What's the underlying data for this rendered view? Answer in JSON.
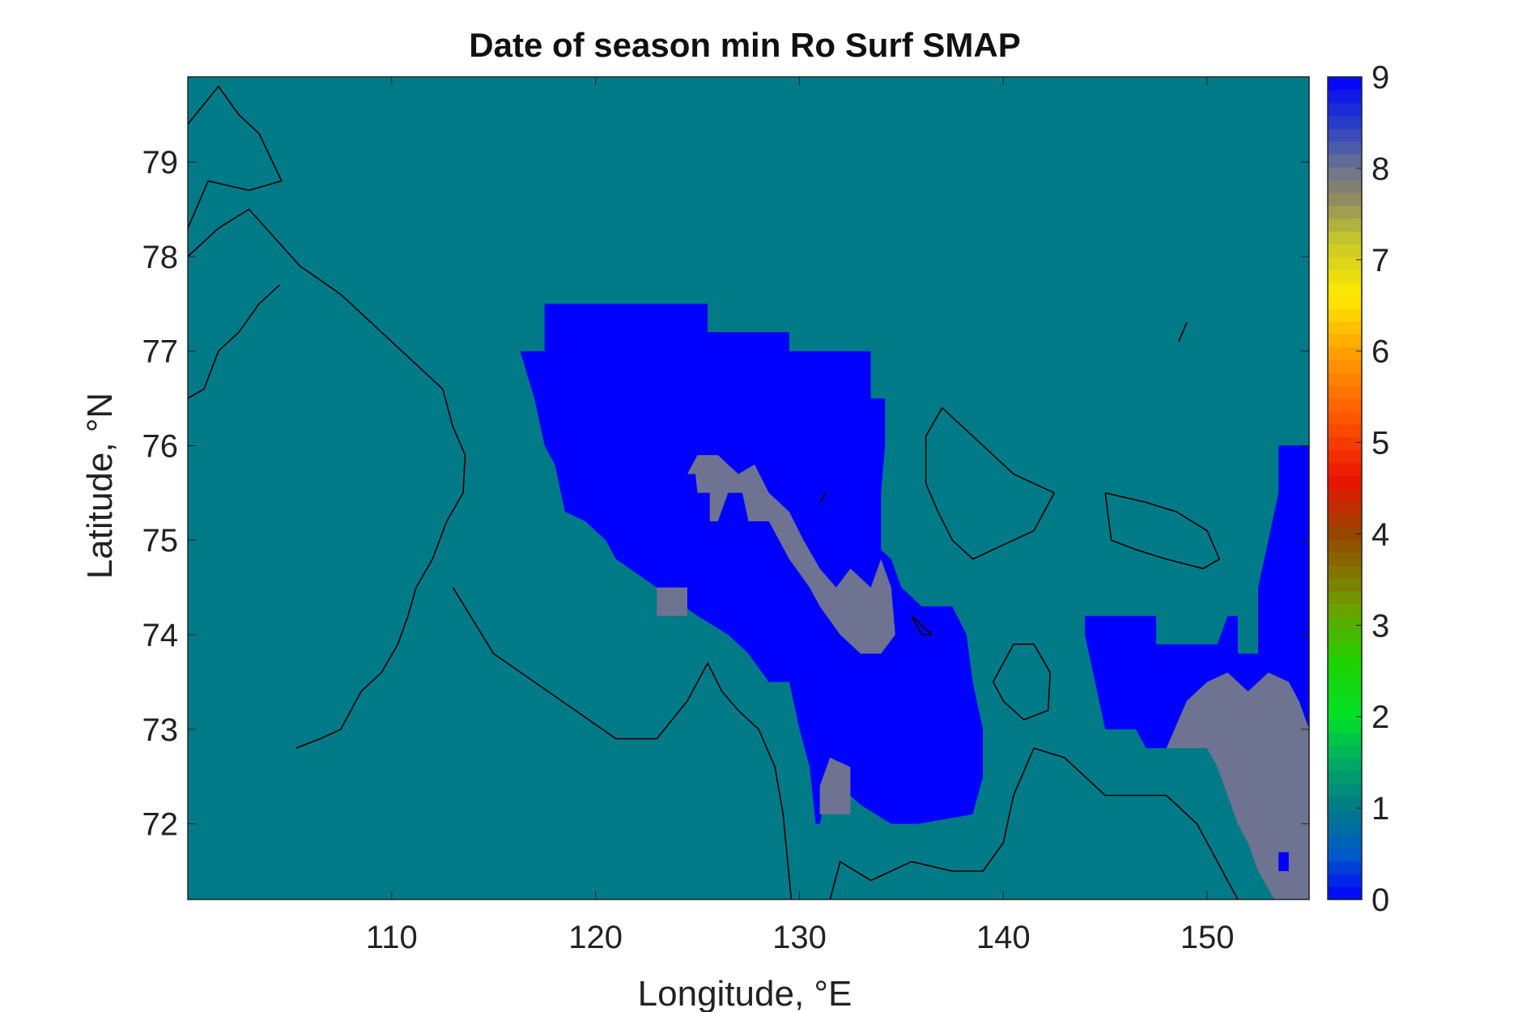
{
  "chart_data": {
    "type": "heatmap",
    "title": "Date of season min Ro Surf SMAP",
    "xlabel": "Longitude, °E",
    "ylabel": "Latitude, °N",
    "xlim": [
      100,
      155
    ],
    "ylim": [
      71.2,
      79.9
    ],
    "xticks": [
      110,
      120,
      130,
      140,
      150
    ],
    "yticks": [
      72,
      73,
      74,
      75,
      76,
      77,
      78,
      79
    ],
    "grid": false,
    "background_value": 1,
    "colorbar": {
      "position": "right",
      "range": [
        0,
        9
      ],
      "ticks": [
        0,
        1,
        2,
        3,
        4,
        5,
        6,
        7,
        8,
        9
      ],
      "colormap": "blue-teal-green-yellow-orange-red-brown-gray-blue"
    },
    "colors": {
      "value_0": "#0000ff",
      "value_1": "#007a87",
      "value_8": "#6e7391",
      "value_9": "#0000ff",
      "coastline": "#000000"
    },
    "regions": [
      {
        "value": 9,
        "description": "large blue patch central Laptev Sea",
        "polygon": [
          [
            116.3,
            77.0
          ],
          [
            117.5,
            77.0
          ],
          [
            117.5,
            77.5
          ],
          [
            125.5,
            77.5
          ],
          [
            125.5,
            77.2
          ],
          [
            129.5,
            77.2
          ],
          [
            129.5,
            77.0
          ],
          [
            133.5,
            77.0
          ],
          [
            133.5,
            76.5
          ],
          [
            134.2,
            76.5
          ],
          [
            134.2,
            76.0
          ],
          [
            134.0,
            75.5
          ],
          [
            134.0,
            74.9
          ],
          [
            134.5,
            74.8
          ],
          [
            135.0,
            74.5
          ],
          [
            136.0,
            74.3
          ],
          [
            137.5,
            74.3
          ],
          [
            138.2,
            74.0
          ],
          [
            138.5,
            73.5
          ],
          [
            139.0,
            73.0
          ],
          [
            139.0,
            72.5
          ],
          [
            138.5,
            72.1
          ],
          [
            135.8,
            72.0
          ],
          [
            134.5,
            72.0
          ],
          [
            133.0,
            72.2
          ],
          [
            131.5,
            72.5
          ],
          [
            131.0,
            72.0
          ],
          [
            130.8,
            72.0
          ],
          [
            130.5,
            72.6
          ],
          [
            130.0,
            73.0
          ],
          [
            129.5,
            73.5
          ],
          [
            128.5,
            73.5
          ],
          [
            127.5,
            73.8
          ],
          [
            126.5,
            74.0
          ],
          [
            125.0,
            74.2
          ],
          [
            123.0,
            74.5
          ],
          [
            121.0,
            74.8
          ],
          [
            120.5,
            75.0
          ],
          [
            119.5,
            75.2
          ],
          [
            118.5,
            75.3
          ],
          [
            118.0,
            75.8
          ],
          [
            117.5,
            76.0
          ],
          [
            117.0,
            76.5
          ],
          [
            116.3,
            77.0
          ]
        ]
      },
      {
        "value": 8,
        "description": "gray streak inside central blue patch",
        "polygon": [
          [
            124.5,
            75.7
          ],
          [
            124.9,
            75.7
          ],
          [
            125.0,
            75.5
          ],
          [
            125.6,
            75.5
          ],
          [
            125.6,
            75.2
          ],
          [
            126.0,
            75.2
          ],
          [
            126.5,
            75.5
          ],
          [
            127.2,
            75.5
          ],
          [
            127.5,
            75.2
          ],
          [
            128.5,
            75.2
          ],
          [
            129.5,
            74.8
          ],
          [
            130.5,
            74.5
          ],
          [
            131.0,
            74.3
          ],
          [
            132.0,
            74.0
          ],
          [
            133.0,
            73.8
          ],
          [
            134.0,
            73.8
          ],
          [
            134.7,
            74.0
          ],
          [
            134.5,
            74.5
          ],
          [
            134.0,
            74.8
          ],
          [
            133.5,
            74.5
          ],
          [
            132.5,
            74.7
          ],
          [
            131.8,
            74.5
          ],
          [
            131.0,
            74.7
          ],
          [
            130.2,
            75.0
          ],
          [
            129.5,
            75.3
          ],
          [
            128.5,
            75.5
          ],
          [
            127.8,
            75.8
          ],
          [
            127.0,
            75.7
          ],
          [
            126.0,
            75.9
          ],
          [
            125.0,
            75.9
          ],
          [
            124.5,
            75.7
          ]
        ]
      },
      {
        "value": 8,
        "description": "gray cells southern edge central patch",
        "polygon": [
          [
            131.0,
            72.1
          ],
          [
            132.5,
            72.1
          ],
          [
            132.5,
            72.6
          ],
          [
            131.5,
            72.7
          ],
          [
            131.0,
            72.4
          ],
          [
            131.0,
            72.1
          ]
        ]
      },
      {
        "value": 8,
        "description": "gray block west of central patch",
        "polygon": [
          [
            123.0,
            74.2
          ],
          [
            124.5,
            74.2
          ],
          [
            124.5,
            74.5
          ],
          [
            123.0,
            74.5
          ],
          [
            123.0,
            74.2
          ]
        ]
      },
      {
        "value": 9,
        "description": "blue patch east of New Siberian Islands",
        "polygon": [
          [
            144.0,
            74.2
          ],
          [
            147.5,
            74.2
          ],
          [
            147.5,
            73.9
          ],
          [
            150.5,
            73.9
          ],
          [
            151.0,
            74.2
          ],
          [
            151.5,
            74.2
          ],
          [
            151.5,
            73.8
          ],
          [
            152.5,
            73.8
          ],
          [
            152.5,
            74.5
          ],
          [
            153.0,
            75.0
          ],
          [
            153.5,
            75.5
          ],
          [
            153.5,
            76.0
          ],
          [
            155.0,
            76.0
          ],
          [
            155.0,
            73.0
          ],
          [
            154.5,
            73.3
          ],
          [
            154.0,
            73.5
          ],
          [
            153.0,
            73.6
          ],
          [
            152.0,
            73.4
          ],
          [
            151.0,
            73.6
          ],
          [
            150.0,
            73.5
          ],
          [
            149.0,
            73.3
          ],
          [
            148.0,
            72.8
          ],
          [
            147.0,
            72.8
          ],
          [
            146.5,
            73.0
          ],
          [
            145.0,
            73.0
          ],
          [
            144.5,
            73.5
          ],
          [
            144.0,
            74.0
          ],
          [
            144.0,
            74.2
          ]
        ]
      },
      {
        "value": 8,
        "description": "gray patch East Siberian Sea coast",
        "polygon": [
          [
            147.0,
            72.8
          ],
          [
            148.0,
            72.8
          ],
          [
            149.0,
            73.3
          ],
          [
            150.0,
            73.5
          ],
          [
            151.0,
            73.6
          ],
          [
            152.0,
            73.4
          ],
          [
            153.0,
            73.6
          ],
          [
            154.0,
            73.5
          ],
          [
            154.5,
            73.3
          ],
          [
            155.0,
            73.0
          ],
          [
            155.0,
            71.2
          ],
          [
            153.3,
            71.2
          ],
          [
            152.5,
            71.5
          ],
          [
            152.0,
            71.8
          ],
          [
            151.5,
            72.0
          ],
          [
            151.0,
            72.3
          ],
          [
            150.5,
            72.6
          ],
          [
            150.0,
            72.8
          ],
          [
            149.0,
            72.8
          ],
          [
            148.5,
            72.8
          ],
          [
            147.5,
            72.8
          ],
          [
            147.0,
            72.8
          ]
        ]
      },
      {
        "value": 9,
        "description": "small blue cell south gray patch",
        "polygon": [
          [
            153.5,
            71.5
          ],
          [
            154.0,
            71.5
          ],
          [
            154.0,
            71.7
          ],
          [
            153.5,
            71.7
          ],
          [
            153.5,
            71.5
          ]
        ]
      }
    ],
    "coastlines": [
      {
        "name": "Taymyr Peninsula",
        "points": [
          [
            100.0,
            78.0
          ],
          [
            101.5,
            78.3
          ],
          [
            103.0,
            78.5
          ],
          [
            105.5,
            77.9
          ],
          [
            107.5,
            77.6
          ],
          [
            109.5,
            77.2
          ],
          [
            110.5,
            77.0
          ],
          [
            112.5,
            76.6
          ],
          [
            113.0,
            76.2
          ],
          [
            113.6,
            75.9
          ],
          [
            113.5,
            75.5
          ],
          [
            112.7,
            75.2
          ],
          [
            112.0,
            74.8
          ],
          [
            111.2,
            74.5
          ],
          [
            110.8,
            74.2
          ],
          [
            110.3,
            73.9
          ],
          [
            109.5,
            73.6
          ],
          [
            108.5,
            73.4
          ],
          [
            107.5,
            73.0
          ],
          [
            106.5,
            72.9
          ],
          [
            105.3,
            72.8
          ]
        ]
      },
      {
        "name": "Taymyr west coast",
        "points": [
          [
            100.0,
            76.5
          ],
          [
            100.8,
            76.6
          ],
          [
            101.5,
            77.0
          ],
          [
            102.5,
            77.2
          ],
          [
            103.5,
            77.5
          ],
          [
            104.5,
            77.7
          ]
        ]
      },
      {
        "name": "Severnaya Zemlya",
        "points": [
          [
            100.0,
            79.4
          ],
          [
            101.5,
            79.8
          ],
          [
            102.5,
            79.5
          ],
          [
            103.5,
            79.3
          ],
          [
            104.6,
            78.8
          ],
          [
            103.0,
            78.7
          ],
          [
            101.0,
            78.8
          ],
          [
            100.0,
            78.3
          ]
        ]
      },
      {
        "name": "Khatanga coast",
        "points": [
          [
            113.0,
            74.5
          ],
          [
            115.0,
            73.8
          ],
          [
            117.0,
            73.5
          ],
          [
            119.0,
            73.2
          ],
          [
            121.0,
            72.9
          ],
          [
            123.0,
            72.9
          ],
          [
            124.5,
            73.3
          ],
          [
            125.5,
            73.7
          ],
          [
            126.2,
            73.4
          ],
          [
            127.0,
            73.2
          ],
          [
            128.0,
            73.0
          ],
          [
            128.8,
            72.6
          ],
          [
            129.2,
            72.1
          ],
          [
            129.6,
            71.2
          ]
        ]
      },
      {
        "name": "Lena Delta coast",
        "points": [
          [
            131.5,
            71.2
          ],
          [
            132.0,
            71.6
          ],
          [
            133.5,
            71.4
          ],
          [
            135.5,
            71.6
          ],
          [
            137.5,
            71.5
          ],
          [
            139.0,
            71.5
          ],
          [
            140.0,
            71.8
          ],
          [
            140.5,
            72.3
          ],
          [
            141.5,
            72.8
          ],
          [
            143.0,
            72.7
          ],
          [
            145.0,
            72.3
          ],
          [
            146.5,
            72.3
          ],
          [
            148.0,
            72.3
          ],
          [
            149.5,
            72.0
          ],
          [
            150.5,
            71.6
          ],
          [
            151.5,
            71.2
          ]
        ]
      },
      {
        "name": "Kotelny Island",
        "points": [
          [
            136.2,
            76.1
          ],
          [
            137.0,
            76.4
          ],
          [
            138.0,
            76.2
          ],
          [
            139.0,
            76.0
          ],
          [
            140.5,
            75.7
          ],
          [
            141.5,
            75.6
          ],
          [
            142.5,
            75.5
          ],
          [
            141.5,
            75.1
          ],
          [
            140.5,
            75.0
          ],
          [
            139.5,
            74.9
          ],
          [
            138.5,
            74.8
          ],
          [
            137.5,
            75.0
          ],
          [
            136.8,
            75.3
          ],
          [
            136.2,
            75.6
          ],
          [
            136.2,
            76.1
          ]
        ]
      },
      {
        "name": "New Siberia Island",
        "points": [
          [
            145.0,
            75.5
          ],
          [
            147.0,
            75.4
          ],
          [
            148.5,
            75.3
          ],
          [
            150.0,
            75.1
          ],
          [
            150.6,
            74.8
          ],
          [
            149.8,
            74.7
          ],
          [
            148.0,
            74.8
          ],
          [
            146.5,
            74.9
          ],
          [
            145.3,
            75.0
          ],
          [
            145.0,
            75.5
          ]
        ]
      },
      {
        "name": "Bolshoy Lyakhovsky",
        "points": [
          [
            139.5,
            73.5
          ],
          [
            140.5,
            73.9
          ],
          [
            141.5,
            73.9
          ],
          [
            142.3,
            73.6
          ],
          [
            142.2,
            73.2
          ],
          [
            141.0,
            73.1
          ],
          [
            140.0,
            73.3
          ],
          [
            139.5,
            73.5
          ]
        ]
      },
      {
        "name": "Stolbovoy",
        "points": [
          [
            135.5,
            74.2
          ],
          [
            136.0,
            74.1
          ],
          [
            136.5,
            74.0
          ],
          [
            136.0,
            74.0
          ],
          [
            135.5,
            74.2
          ]
        ]
      },
      {
        "name": "Bennett island",
        "points": [
          [
            148.6,
            77.1
          ],
          [
            149.0,
            77.3
          ],
          [
            148.8,
            77.2
          ],
          [
            148.6,
            77.1
          ]
        ]
      },
      {
        "name": "Belkovsky",
        "points": [
          [
            131.0,
            75.4
          ],
          [
            131.3,
            75.5
          ],
          [
            131.0,
            75.4
          ]
        ]
      }
    ]
  }
}
